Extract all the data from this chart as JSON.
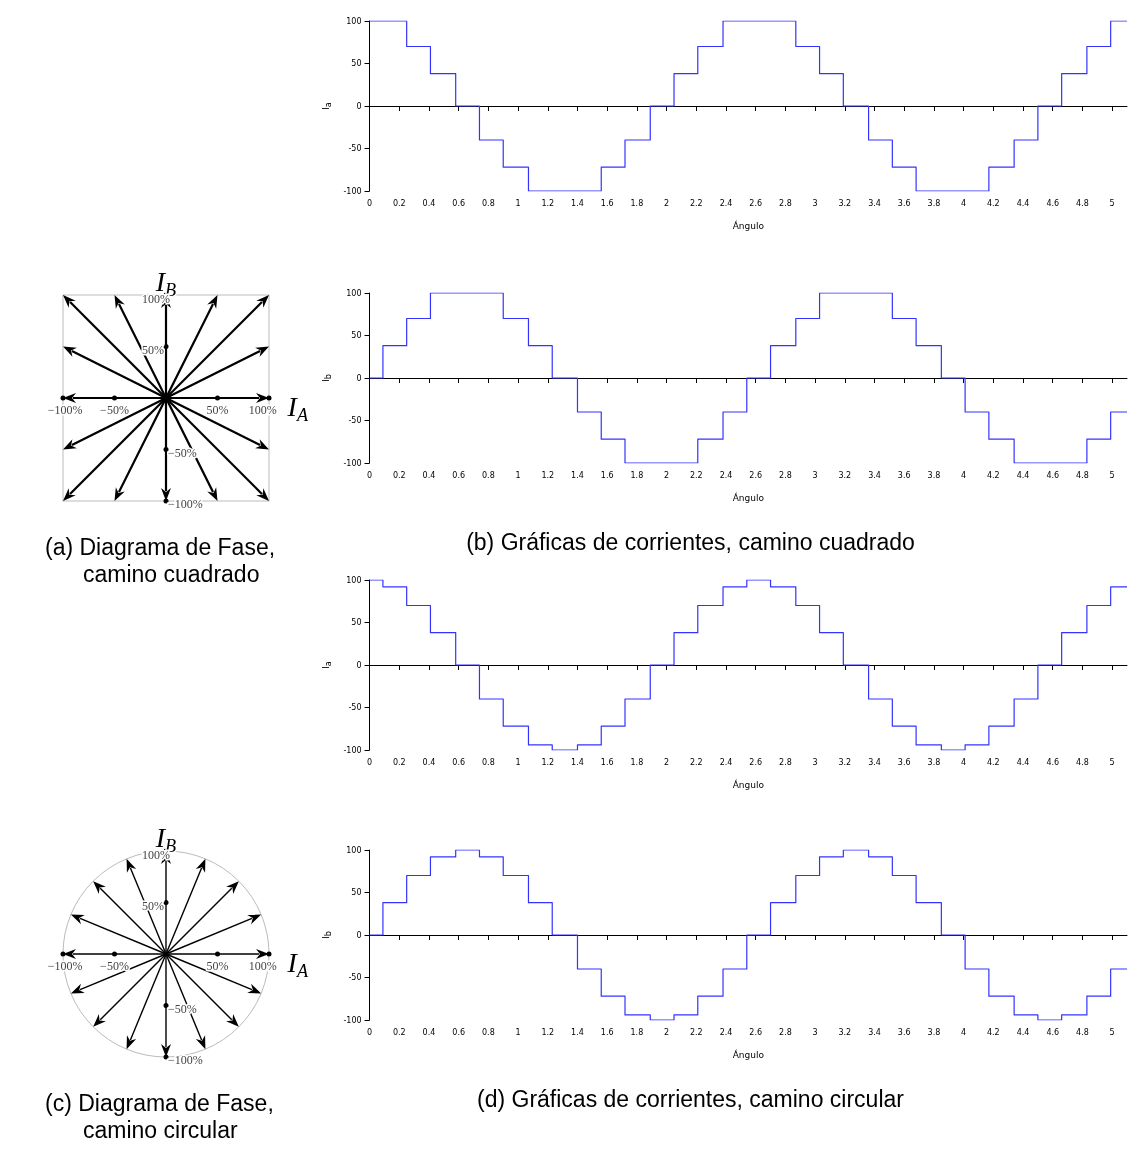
{
  "chart_data": [
    {
      "type": "step",
      "xlabel": "Ángulo",
      "ylabel": "I$_{a}$",
      "xlim": [
        0,
        5.1
      ],
      "ylim": [
        -100,
        100
      ],
      "xticks": [
        0,
        0.2,
        0.4,
        0.6,
        0.8,
        1,
        1.2,
        1.4,
        1.6,
        1.8,
        2,
        2.2,
        2.4,
        2.6,
        2.8,
        3,
        3.2,
        3.4,
        3.6,
        3.8,
        4,
        4.2,
        4.4,
        4.6,
        4.8,
        5
      ],
      "yticks": [
        -100,
        -50,
        0,
        50,
        100
      ],
      "x": [
        0,
        0.25,
        0.41,
        0.58,
        0.74,
        0.9,
        1.07,
        1.56,
        1.72,
        1.89,
        2.05,
        2.21,
        2.38,
        2.87,
        3.03,
        3.19,
        3.36,
        3.52,
        3.68,
        4.17,
        4.34,
        4.5,
        4.66,
        4.83,
        4.99,
        5.1
      ],
      "series": [
        {
          "color": "#3333ff",
          "values": [
            100,
            70,
            38,
            0,
            -40,
            -72,
            -100,
            -72,
            -40,
            0,
            38,
            70,
            100,
            70,
            38,
            0,
            -40,
            -72,
            -100,
            -72,
            -40,
            0,
            38,
            70,
            100,
            100
          ]
        }
      ]
    },
    {
      "type": "other",
      "title": "(a) Diagrama de Fase, camino cuadrado",
      "annotations": [
        "I$_{B}$",
        "I$_{A}$",
        "100%",
        "50%",
        "−100%",
        "−50%",
        "50%",
        "100%",
        "−50%",
        "−100%"
      ]
    },
    {
      "type": "step",
      "xlabel": "Ángulo",
      "ylabel": "I$_{b}$",
      "xlim": [
        0,
        5.1
      ],
      "ylim": [
        -100,
        100
      ],
      "xticks": [
        0,
        0.2,
        0.4,
        0.6,
        0.8,
        1,
        1.2,
        1.4,
        1.6,
        1.8,
        2,
        2.2,
        2.4,
        2.6,
        2.8,
        3,
        3.2,
        3.4,
        3.6,
        3.8,
        4,
        4.2,
        4.4,
        4.6,
        4.8,
        5
      ],
      "yticks": [
        -100,
        -50,
        0,
        50,
        100
      ],
      "x": [
        0,
        0.09,
        0.25,
        0.41,
        0.9,
        1.07,
        1.23,
        1.4,
        1.56,
        1.72,
        2.21,
        2.38,
        2.54,
        2.7,
        2.87,
        3.03,
        3.52,
        3.68,
        3.85,
        4.01,
        4.17,
        4.34,
        4.83,
        4.99,
        5.1
      ],
      "series": [
        {
          "color": "#3333ff",
          "values": [
            0,
            38,
            70,
            100,
            70,
            38,
            0,
            -40,
            -72,
            -100,
            -72,
            -40,
            0,
            38,
            70,
            100,
            70,
            38,
            0,
            -40,
            -72,
            -100,
            -72,
            -40,
            -40
          ]
        }
      ],
      "annotations": [
        "(b) Gráficas de corrientes, camino cuadrado"
      ]
    },
    {
      "type": "step",
      "xlabel": "Ángulo",
      "ylabel": "I$_{a}$",
      "xlim": [
        0,
        5.1
      ],
      "ylim": [
        -100,
        100
      ],
      "xticks": [
        0,
        0.2,
        0.4,
        0.6,
        0.8,
        1,
        1.2,
        1.4,
        1.6,
        1.8,
        2,
        2.2,
        2.4,
        2.6,
        2.8,
        3,
        3.2,
        3.4,
        3.6,
        3.8,
        4,
        4.2,
        4.4,
        4.6,
        4.8,
        5
      ],
      "yticks": [
        -100,
        -50,
        0,
        50,
        100
      ],
      "x": [
        0,
        0.09,
        0.25,
        0.41,
        0.58,
        0.74,
        0.9,
        1.07,
        1.23,
        1.4,
        1.56,
        1.72,
        1.89,
        2.05,
        2.21,
        2.38,
        2.54,
        2.7,
        2.87,
        3.03,
        3.19,
        3.36,
        3.52,
        3.68,
        3.85,
        4.01,
        4.17,
        4.34,
        4.5,
        4.66,
        4.83,
        4.99,
        5.1
      ],
      "series": [
        {
          "color": "#3333ff",
          "values": [
            100,
            92,
            70,
            38,
            0,
            -40,
            -72,
            -94,
            -100,
            -94,
            -72,
            -40,
            0,
            38,
            70,
            92,
            100,
            92,
            70,
            38,
            0,
            -40,
            -72,
            -94,
            -100,
            -94,
            -72,
            -40,
            0,
            38,
            70,
            92,
            92
          ]
        }
      ]
    },
    {
      "type": "other",
      "title": "(c) Diagrama de Fase, camino circular",
      "annotations": [
        "I$_{B}$",
        "I$_{A}$",
        "100%",
        "50%",
        "−100%",
        "−50%",
        "50%",
        "100%",
        "−50%",
        "−100%"
      ]
    },
    {
      "type": "step",
      "xlabel": "Ángulo",
      "ylabel": "I$_{b}$",
      "xlim": [
        0,
        5.1
      ],
      "ylim": [
        -100,
        100
      ],
      "xticks": [
        0,
        0.2,
        0.4,
        0.6,
        0.8,
        1,
        1.2,
        1.4,
        1.6,
        1.8,
        2,
        2.2,
        2.4,
        2.6,
        2.8,
        3,
        3.2,
        3.4,
        3.6,
        3.8,
        4,
        4.2,
        4.4,
        4.6,
        4.8,
        5
      ],
      "yticks": [
        -100,
        -50,
        0,
        50,
        100
      ],
      "x": [
        0,
        0.09,
        0.25,
        0.41,
        0.58,
        0.74,
        0.9,
        1.07,
        1.23,
        1.4,
        1.56,
        1.72,
        1.89,
        2.05,
        2.21,
        2.38,
        2.54,
        2.7,
        2.87,
        3.03,
        3.19,
        3.36,
        3.52,
        3.68,
        3.85,
        4.01,
        4.17,
        4.34,
        4.5,
        4.66,
        4.83,
        4.99,
        5.1
      ],
      "series": [
        {
          "color": "#3333ff",
          "values": [
            0,
            38,
            70,
            92,
            100,
            92,
            70,
            38,
            0,
            -40,
            -72,
            -94,
            -100,
            -94,
            -72,
            -40,
            0,
            38,
            70,
            92,
            100,
            92,
            70,
            38,
            0,
            -40,
            -72,
            -94,
            -100,
            -94,
            -72,
            -40,
            -40
          ]
        }
      ],
      "annotations": [
        "(d) Gráficas de corrientes, camino circular"
      ]
    }
  ]
}
